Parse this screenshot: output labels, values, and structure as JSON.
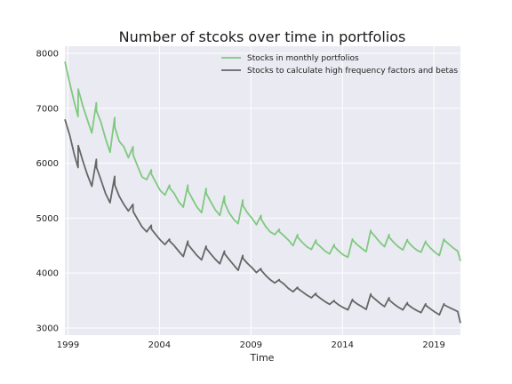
{
  "chart_data": {
    "type": "line",
    "title": "Number of stcoks over time in portfolios",
    "xlabel": "Time",
    "ylabel": "",
    "xlim": [
      1998.83,
      2020.45
    ],
    "ylim": [
      2870,
      8130
    ],
    "xticks": [
      1999,
      2004,
      2009,
      2014,
      2019
    ],
    "yticks": [
      3000,
      4000,
      5000,
      6000,
      7000,
      8000
    ],
    "grid": true,
    "background": "#eaeaf2",
    "legend_position": "upper-right",
    "series": [
      {
        "name": "Stocks in monthly portfolios",
        "color": "#7fc97f",
        "x": [
          1998.83,
          1999.1,
          1999.35,
          1999.55,
          1999.56,
          1999.8,
          2000.05,
          2000.3,
          2000.55,
          2000.56,
          2000.8,
          2001.05,
          2001.3,
          2001.55,
          2001.56,
          2001.8,
          2002.05,
          2002.3,
          2002.55,
          2002.56,
          2002.8,
          2003.05,
          2003.3,
          2003.55,
          2003.56,
          2003.8,
          2004.05,
          2004.3,
          2004.55,
          2004.56,
          2004.8,
          2005.05,
          2005.3,
          2005.55,
          2005.56,
          2005.8,
          2006.05,
          2006.3,
          2006.55,
          2006.56,
          2006.8,
          2007.05,
          2007.3,
          2007.55,
          2007.56,
          2007.8,
          2008.05,
          2008.3,
          2008.55,
          2008.56,
          2008.8,
          2009.05,
          2009.3,
          2009.55,
          2009.56,
          2009.8,
          2010.05,
          2010.3,
          2010.55,
          2010.56,
          2010.8,
          2011.05,
          2011.3,
          2011.55,
          2011.56,
          2011.8,
          2012.05,
          2012.3,
          2012.55,
          2012.56,
          2012.8,
          2013.05,
          2013.3,
          2013.55,
          2013.56,
          2013.8,
          2014.05,
          2014.3,
          2014.55,
          2014.56,
          2014.8,
          2015.05,
          2015.3,
          2015.55,
          2015.56,
          2015.8,
          2016.05,
          2016.3,
          2016.55,
          2016.56,
          2016.8,
          2017.05,
          2017.3,
          2017.55,
          2017.56,
          2017.8,
          2018.05,
          2018.3,
          2018.55,
          2018.56,
          2018.8,
          2019.05,
          2019.3,
          2019.55,
          2019.56,
          2019.8,
          2020.05,
          2020.3,
          2020.45
        ],
        "y": [
          7850,
          7450,
          7100,
          6850,
          7350,
          7050,
          6800,
          6550,
          7100,
          6950,
          6750,
          6450,
          6200,
          6830,
          6650,
          6400,
          6300,
          6100,
          6300,
          6150,
          5950,
          5750,
          5700,
          5880,
          5800,
          5650,
          5500,
          5420,
          5600,
          5550,
          5450,
          5300,
          5200,
          5600,
          5500,
          5350,
          5200,
          5100,
          5540,
          5450,
          5300,
          5150,
          5050,
          5400,
          5280,
          5100,
          4980,
          4900,
          5330,
          5230,
          5100,
          5000,
          4880,
          5050,
          4980,
          4850,
          4750,
          4700,
          4800,
          4750,
          4680,
          4600,
          4500,
          4700,
          4650,
          4560,
          4480,
          4430,
          4600,
          4550,
          4480,
          4400,
          4350,
          4520,
          4480,
          4400,
          4330,
          4290,
          4620,
          4600,
          4520,
          4450,
          4390,
          4780,
          4750,
          4660,
          4560,
          4480,
          4700,
          4650,
          4560,
          4480,
          4420,
          4610,
          4580,
          4490,
          4420,
          4380,
          4580,
          4550,
          4460,
          4380,
          4320,
          4620,
          4600,
          4530,
          4460,
          4400,
          4220
        ]
      },
      {
        "name": "Stocks to calculate high frequency factors and betas",
        "color": "#666666",
        "x": [
          1998.83,
          1999.1,
          1999.35,
          1999.55,
          1999.56,
          1999.8,
          2000.05,
          2000.3,
          2000.55,
          2000.56,
          2000.8,
          2001.05,
          2001.3,
          2001.55,
          2001.56,
          2001.8,
          2002.05,
          2002.3,
          2002.55,
          2002.56,
          2002.8,
          2003.05,
          2003.3,
          2003.55,
          2003.56,
          2003.8,
          2004.05,
          2004.3,
          2004.55,
          2004.56,
          2004.8,
          2005.05,
          2005.3,
          2005.55,
          2005.56,
          2005.8,
          2006.05,
          2006.3,
          2006.55,
          2006.56,
          2006.8,
          2007.05,
          2007.3,
          2007.55,
          2007.56,
          2007.8,
          2008.05,
          2008.3,
          2008.55,
          2008.56,
          2008.8,
          2009.05,
          2009.3,
          2009.55,
          2009.56,
          2009.8,
          2010.05,
          2010.3,
          2010.55,
          2010.56,
          2010.8,
          2011.05,
          2011.3,
          2011.55,
          2011.56,
          2011.8,
          2012.05,
          2012.3,
          2012.55,
          2012.56,
          2012.8,
          2013.05,
          2013.3,
          2013.55,
          2013.56,
          2013.8,
          2014.05,
          2014.3,
          2014.55,
          2014.56,
          2014.8,
          2015.05,
          2015.3,
          2015.55,
          2015.56,
          2015.8,
          2016.05,
          2016.3,
          2016.55,
          2016.56,
          2016.8,
          2017.05,
          2017.3,
          2017.55,
          2017.56,
          2017.8,
          2018.05,
          2018.3,
          2018.55,
          2018.56,
          2018.8,
          2019.05,
          2019.3,
          2019.55,
          2019.56,
          2019.8,
          2020.05,
          2020.3,
          2020.45
        ],
        "y": [
          6800,
          6500,
          6150,
          5920,
          6320,
          6050,
          5800,
          5580,
          6070,
          5920,
          5700,
          5450,
          5280,
          5760,
          5600,
          5400,
          5250,
          5130,
          5250,
          5120,
          4980,
          4840,
          4750,
          4870,
          4800,
          4700,
          4600,
          4520,
          4620,
          4580,
          4500,
          4400,
          4300,
          4580,
          4520,
          4420,
          4320,
          4240,
          4490,
          4450,
          4350,
          4250,
          4170,
          4400,
          4350,
          4250,
          4150,
          4050,
          4320,
          4270,
          4180,
          4100,
          4010,
          4080,
          4050,
          3960,
          3880,
          3820,
          3880,
          3860,
          3800,
          3720,
          3660,
          3740,
          3720,
          3660,
          3600,
          3550,
          3630,
          3600,
          3540,
          3480,
          3430,
          3500,
          3480,
          3420,
          3370,
          3330,
          3520,
          3500,
          3440,
          3390,
          3340,
          3620,
          3590,
          3520,
          3450,
          3390,
          3550,
          3510,
          3440,
          3380,
          3330,
          3460,
          3430,
          3370,
          3320,
          3280,
          3440,
          3410,
          3350,
          3290,
          3240,
          3440,
          3420,
          3380,
          3340,
          3300,
          3090
        ]
      }
    ]
  }
}
